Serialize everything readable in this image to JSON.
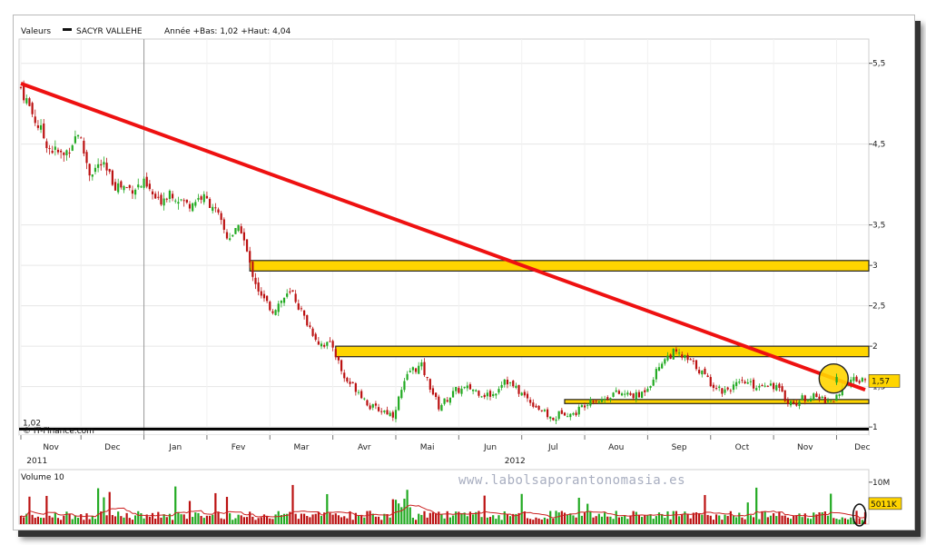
{
  "chart_data": {
    "type": "candlestick",
    "legend": {
      "label": "Valeurs",
      "series_name": "SACYR VALLEHE",
      "range_text": "Année +Bas: 1,02 +Haut: 4,04"
    },
    "source_label": "© IT-Finance.com",
    "watermark": "www.labolsaporantonomasia.es",
    "price_panel": {
      "ylim": [
        0.9,
        5.8
      ],
      "y_ticks": [
        {
          "v": 5.5,
          "label": "5,5"
        },
        {
          "v": 4.5,
          "label": "4,5"
        },
        {
          "v": 3.5,
          "label": "3,5"
        },
        {
          "v": 3.0,
          "label": "3"
        },
        {
          "v": 2.5,
          "label": "2,5"
        },
        {
          "v": 2.0,
          "label": "2"
        },
        {
          "v": 1.5,
          "label": "1,5"
        },
        {
          "v": 1.0,
          "label": "1"
        }
      ],
      "last_price": {
        "value": 1.57,
        "label": "1,57"
      },
      "low_marker": {
        "value": 1.02,
        "label": "1,02"
      }
    },
    "x_axis": {
      "months": [
        "Nov",
        "Dec",
        "Jan",
        "Fev",
        "Mar",
        "Avr",
        "Mai",
        "Jun",
        "Jul",
        "Aou",
        "Sep",
        "Oct",
        "Nov",
        "Dec"
      ],
      "month_index_start": [
        0,
        21,
        43,
        65,
        87,
        109,
        131,
        153,
        175,
        197,
        219,
        241,
        263,
        285
      ],
      "years": [
        {
          "label": "2011",
          "at": 2
        },
        {
          "label": "2012",
          "at": 169
        }
      ],
      "year_divider_at": 43,
      "n_days": 296
    },
    "series_control_points": [
      [
        0,
        5.2
      ],
      [
        5,
        4.8
      ],
      [
        10,
        4.45
      ],
      [
        15,
        4.35
      ],
      [
        20,
        4.65
      ],
      [
        24,
        4.15
      ],
      [
        28,
        4.25
      ],
      [
        33,
        4.0
      ],
      [
        38,
        3.95
      ],
      [
        43,
        4.0
      ],
      [
        48,
        3.78
      ],
      [
        52,
        3.92
      ],
      [
        58,
        3.75
      ],
      [
        63,
        3.85
      ],
      [
        67,
        3.75
      ],
      [
        72,
        3.35
      ],
      [
        77,
        3.45
      ],
      [
        80,
        3.0
      ],
      [
        84,
        2.6
      ],
      [
        88,
        2.45
      ],
      [
        92,
        2.6
      ],
      [
        95,
        2.65
      ],
      [
        99,
        2.35
      ],
      [
        104,
        2.05
      ],
      [
        109,
        2.0
      ],
      [
        113,
        1.6
      ],
      [
        118,
        1.45
      ],
      [
        122,
        1.25
      ],
      [
        127,
        1.2
      ],
      [
        130,
        1.15
      ],
      [
        133,
        1.45
      ],
      [
        136,
        1.7
      ],
      [
        140,
        1.75
      ],
      [
        143,
        1.5
      ],
      [
        146,
        1.25
      ],
      [
        149,
        1.35
      ],
      [
        152,
        1.45
      ],
      [
        157,
        1.48
      ],
      [
        162,
        1.4
      ],
      [
        165,
        1.4
      ],
      [
        169,
        1.6
      ],
      [
        172,
        1.5
      ],
      [
        177,
        1.35
      ],
      [
        182,
        1.2
      ],
      [
        186,
        1.08
      ],
      [
        189,
        1.2
      ],
      [
        193,
        1.15
      ],
      [
        195,
        1.22
      ],
      [
        199,
        1.35
      ],
      [
        203,
        1.33
      ],
      [
        207,
        1.42
      ],
      [
        212,
        1.4
      ],
      [
        216,
        1.38
      ],
      [
        220,
        1.55
      ],
      [
        224,
        1.82
      ],
      [
        228,
        1.92
      ],
      [
        232,
        1.85
      ],
      [
        236,
        1.75
      ],
      [
        241,
        1.55
      ],
      [
        245,
        1.45
      ],
      [
        249,
        1.5
      ],
      [
        253,
        1.55
      ],
      [
        257,
        1.5
      ],
      [
        260,
        1.55
      ],
      [
        264,
        1.5
      ],
      [
        267,
        1.35
      ],
      [
        270,
        1.28
      ],
      [
        273,
        1.35
      ],
      [
        276,
        1.38
      ],
      [
        280,
        1.35
      ],
      [
        283,
        1.32
      ],
      [
        286,
        1.38
      ],
      [
        288,
        1.55
      ],
      [
        290,
        1.57
      ]
    ],
    "annotations": {
      "trendline": {
        "from": {
          "x": 0,
          "y": 5.25
        },
        "to": {
          "x": 295,
          "y": 1.46
        },
        "color": "#ee1111"
      },
      "resistance_zones": [
        {
          "x_start": 80,
          "x_end": 295,
          "y_low": 2.93,
          "y_high": 3.06
        },
        {
          "x_start": 110,
          "x_end": 295,
          "y_low": 1.87,
          "y_high": 2.0
        }
      ],
      "support_zone": {
        "x_start": 190,
        "x_end": 295,
        "y_low": 1.29,
        "y_high": 1.34
      },
      "highlight_circle": {
        "x": 284,
        "y": 1.6
      },
      "zone_fill": "#ffd500"
    },
    "volume_panel": {
      "title": "Volume 10",
      "y_ticks": [
        {
          "v": 10,
          "label": "10M"
        }
      ],
      "last_volume": {
        "value": 5.011,
        "label": "5011K"
      },
      "ylim": [
        0,
        13
      ],
      "moving_average_period": 10
    },
    "colors": {
      "up": "#22aa22",
      "down": "#bb1111",
      "ma": "#cc2222"
    }
  }
}
